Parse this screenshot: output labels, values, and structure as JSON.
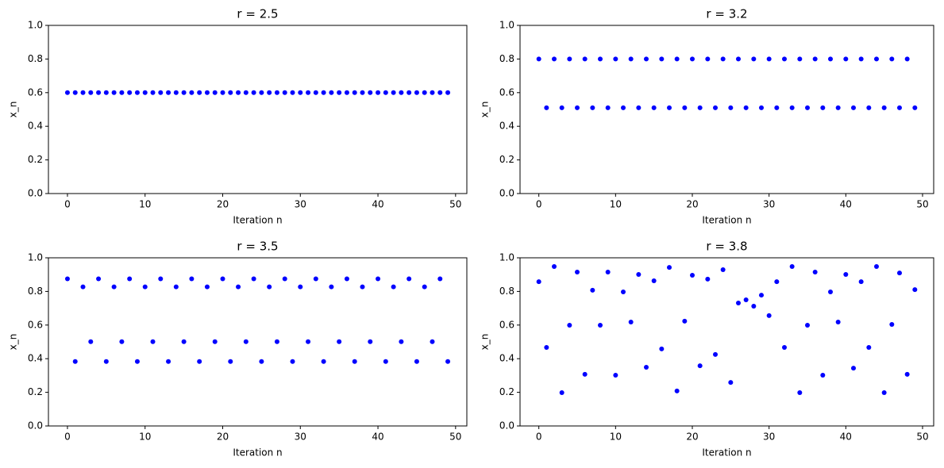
{
  "chart_data": [
    {
      "type": "scatter",
      "title": "r = 2.5",
      "x_label": "Iteration n",
      "y_label": "x_n",
      "color": "blue",
      "x": [
        0,
        1,
        2,
        3,
        4,
        5,
        6,
        7,
        8,
        9,
        10,
        11,
        12,
        13,
        14,
        15,
        16,
        17,
        18,
        19,
        20,
        21,
        22,
        23,
        24,
        25,
        26,
        27,
        28,
        29,
        30,
        31,
        32,
        33,
        34,
        35,
        36,
        37,
        38,
        39,
        40,
        41,
        42,
        43,
        44,
        45,
        46,
        47,
        48,
        49
      ],
      "values": [
        0.6,
        0.6,
        0.6,
        0.6,
        0.6,
        0.6,
        0.6,
        0.6,
        0.6,
        0.6,
        0.6,
        0.6,
        0.6,
        0.6,
        0.6,
        0.6,
        0.6,
        0.6,
        0.6,
        0.6,
        0.6,
        0.6,
        0.6,
        0.6,
        0.6,
        0.6,
        0.6,
        0.6,
        0.6,
        0.6,
        0.6,
        0.6,
        0.6,
        0.6,
        0.6,
        0.6,
        0.6,
        0.6,
        0.6,
        0.6,
        0.6,
        0.6,
        0.6,
        0.6,
        0.6,
        0.6,
        0.6,
        0.6,
        0.6,
        0.6
      ],
      "xlim": [
        -2.45,
        51.45
      ],
      "xticks": [
        0,
        10,
        20,
        30,
        40,
        50
      ],
      "ylim": [
        0,
        1
      ],
      "yticks": [
        {
          "value": 0,
          "label": "0.0"
        },
        {
          "value": 0.2,
          "label": "0.2"
        },
        {
          "value": 0.4,
          "label": "0.4"
        },
        {
          "value": 0.6,
          "label": "0.6"
        },
        {
          "value": 0.8,
          "label": "0.8"
        },
        {
          "value": 1,
          "label": "1.0"
        }
      ]
    },
    {
      "type": "scatter",
      "title": "r = 3.2",
      "x_label": "Iteration n",
      "y_label": "x_n",
      "color": "blue",
      "x": [
        0,
        1,
        2,
        3,
        4,
        5,
        6,
        7,
        8,
        9,
        10,
        11,
        12,
        13,
        14,
        15,
        16,
        17,
        18,
        19,
        20,
        21,
        22,
        23,
        24,
        25,
        26,
        27,
        28,
        29,
        30,
        31,
        32,
        33,
        34,
        35,
        36,
        37,
        38,
        39,
        40,
        41,
        42,
        43,
        44,
        45,
        46,
        47,
        48,
        49
      ],
      "values": [
        0.8,
        0.51,
        0.8,
        0.51,
        0.8,
        0.51,
        0.8,
        0.51,
        0.8,
        0.51,
        0.8,
        0.51,
        0.8,
        0.51,
        0.8,
        0.51,
        0.8,
        0.51,
        0.8,
        0.51,
        0.8,
        0.51,
        0.8,
        0.51,
        0.8,
        0.51,
        0.8,
        0.51,
        0.8,
        0.51,
        0.8,
        0.51,
        0.8,
        0.51,
        0.8,
        0.51,
        0.8,
        0.51,
        0.8,
        0.51,
        0.8,
        0.51,
        0.8,
        0.51,
        0.8,
        0.51,
        0.8,
        0.51,
        0.8,
        0.51
      ],
      "xlim": [
        -2.45,
        51.45
      ],
      "xticks": [
        0,
        10,
        20,
        30,
        40,
        50
      ],
      "ylim": [
        0,
        1
      ],
      "yticks": [
        {
          "value": 0,
          "label": "0.0"
        },
        {
          "value": 0.2,
          "label": "0.2"
        },
        {
          "value": 0.4,
          "label": "0.4"
        },
        {
          "value": 0.6,
          "label": "0.6"
        },
        {
          "value": 0.8,
          "label": "0.8"
        },
        {
          "value": 1,
          "label": "1.0"
        }
      ]
    },
    {
      "type": "scatter",
      "title": "r = 3.5",
      "x_label": "Iteration n",
      "y_label": "x_n",
      "color": "blue",
      "x": [
        0,
        1,
        2,
        3,
        4,
        5,
        6,
        7,
        8,
        9,
        10,
        11,
        12,
        13,
        14,
        15,
        16,
        17,
        18,
        19,
        20,
        21,
        22,
        23,
        24,
        25,
        26,
        27,
        28,
        29,
        30,
        31,
        32,
        33,
        34,
        35,
        36,
        37,
        38,
        39,
        40,
        41,
        42,
        43,
        44,
        45,
        46,
        47,
        48,
        49
      ],
      "values": [
        0.875,
        0.383,
        0.827,
        0.501,
        0.875,
        0.383,
        0.827,
        0.501,
        0.875,
        0.383,
        0.827,
        0.501,
        0.875,
        0.383,
        0.827,
        0.501,
        0.875,
        0.383,
        0.827,
        0.501,
        0.875,
        0.383,
        0.827,
        0.501,
        0.875,
        0.383,
        0.827,
        0.501,
        0.875,
        0.383,
        0.827,
        0.501,
        0.875,
        0.383,
        0.827,
        0.501,
        0.875,
        0.383,
        0.827,
        0.501,
        0.875,
        0.383,
        0.827,
        0.501,
        0.875,
        0.383,
        0.827,
        0.501,
        0.875,
        0.383
      ],
      "xlim": [
        -2.45,
        51.45
      ],
      "xticks": [
        0,
        10,
        20,
        30,
        40,
        50
      ],
      "ylim": [
        0,
        1
      ],
      "yticks": [
        {
          "value": 0,
          "label": "0.0"
        },
        {
          "value": 0.2,
          "label": "0.2"
        },
        {
          "value": 0.4,
          "label": "0.4"
        },
        {
          "value": 0.6,
          "label": "0.6"
        },
        {
          "value": 0.8,
          "label": "0.8"
        },
        {
          "value": 1,
          "label": "1.0"
        }
      ]
    },
    {
      "type": "scatter",
      "title": "r = 3.8",
      "x_label": "Iteration n",
      "y_label": "x_n",
      "color": "blue",
      "x": [
        0,
        1,
        2,
        3,
        4,
        5,
        6,
        7,
        8,
        9,
        10,
        11,
        12,
        13,
        14,
        15,
        16,
        17,
        18,
        19,
        20,
        21,
        22,
        23,
        24,
        25,
        26,
        27,
        28,
        29,
        30,
        31,
        32,
        33,
        34,
        35,
        36,
        37,
        38,
        39,
        40,
        41,
        42,
        43,
        44,
        45,
        46,
        47,
        48,
        49
      ],
      "values": [
        0.858,
        0.467,
        0.948,
        0.198,
        0.599,
        0.915,
        0.307,
        0.807,
        0.599,
        0.915,
        0.302,
        0.797,
        0.618,
        0.901,
        0.349,
        0.863,
        0.458,
        0.943,
        0.208,
        0.623,
        0.896,
        0.358,
        0.873,
        0.425,
        0.929,
        0.259,
        0.731,
        0.75,
        0.712,
        0.778,
        0.656,
        0.858,
        0.467,
        0.948,
        0.198,
        0.599,
        0.915,
        0.302,
        0.797,
        0.618,
        0.901,
        0.344,
        0.858,
        0.467,
        0.948,
        0.198,
        0.604,
        0.91,
        0.307,
        0.811
      ],
      "xlim": [
        -2.45,
        51.45
      ],
      "xticks": [
        0,
        10,
        20,
        30,
        40,
        50
      ],
      "ylim": [
        0,
        1
      ],
      "yticks": [
        {
          "value": 0,
          "label": "0.0"
        },
        {
          "value": 0.2,
          "label": "0.2"
        },
        {
          "value": 0.4,
          "label": "0.4"
        },
        {
          "value": 0.6,
          "label": "0.6"
        },
        {
          "value": 0.8,
          "label": "0.8"
        },
        {
          "value": 1,
          "label": "1.0"
        }
      ]
    }
  ]
}
